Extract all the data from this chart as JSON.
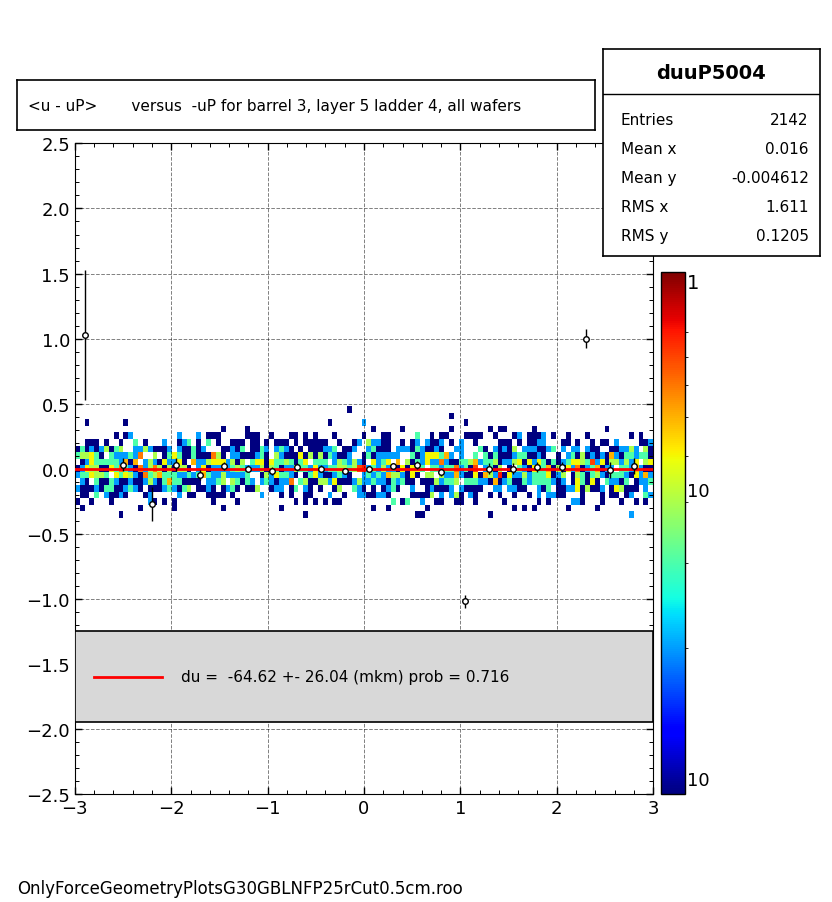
{
  "title": "<u - uP>       versus  -uP for barrel 3, layer 5 ladder 4, all wafers",
  "stats_title": "duuP5004",
  "entries": 2142,
  "mean_x": 0.016,
  "mean_y": -0.004612,
  "rms_x": 1.611,
  "rms_y": 0.1205,
  "xlim": [
    -3.0,
    3.0
  ],
  "ylim": [
    -2.5,
    2.5
  ],
  "fit_label": "du =  -64.62 +- 26.04 (mkm) prob = 0.716",
  "fit_color": "#ff0000",
  "xticks": [
    -3,
    -2,
    -1,
    0,
    1,
    2,
    3
  ],
  "yticks": [
    -2.5,
    -2,
    -1.5,
    -1,
    -0.5,
    0,
    0.5,
    1,
    1.5,
    2,
    2.5
  ],
  "profile_points_x": [
    -2.9,
    -2.5,
    -2.2,
    -1.95,
    -1.7,
    -1.45,
    -1.2,
    -0.95,
    -0.7,
    -0.45,
    -0.2,
    0.05,
    0.3,
    0.55,
    0.8,
    1.05,
    1.3,
    1.55,
    1.8,
    2.05,
    2.3,
    2.55,
    2.8
  ],
  "profile_points_y": [
    1.03,
    0.03,
    -0.27,
    0.03,
    -0.05,
    0.02,
    0.0,
    -0.02,
    0.01,
    0.0,
    -0.02,
    0.0,
    0.02,
    0.03,
    -0.03,
    -1.02,
    0.0,
    0.0,
    0.01,
    0.01,
    1.0,
    -0.01,
    0.02
  ],
  "profile_errors_y": [
    0.5,
    0.05,
    0.13,
    0.05,
    0.04,
    0.03,
    0.03,
    0.03,
    0.03,
    0.03,
    0.02,
    0.02,
    0.02,
    0.03,
    0.03,
    0.05,
    0.04,
    0.04,
    0.04,
    0.04,
    0.07,
    0.06,
    0.06
  ],
  "background_color": "#ffffff",
  "footer": "OnlyForceGeometryPlotsG30GBLNFP25rCut0.5cm.roo"
}
